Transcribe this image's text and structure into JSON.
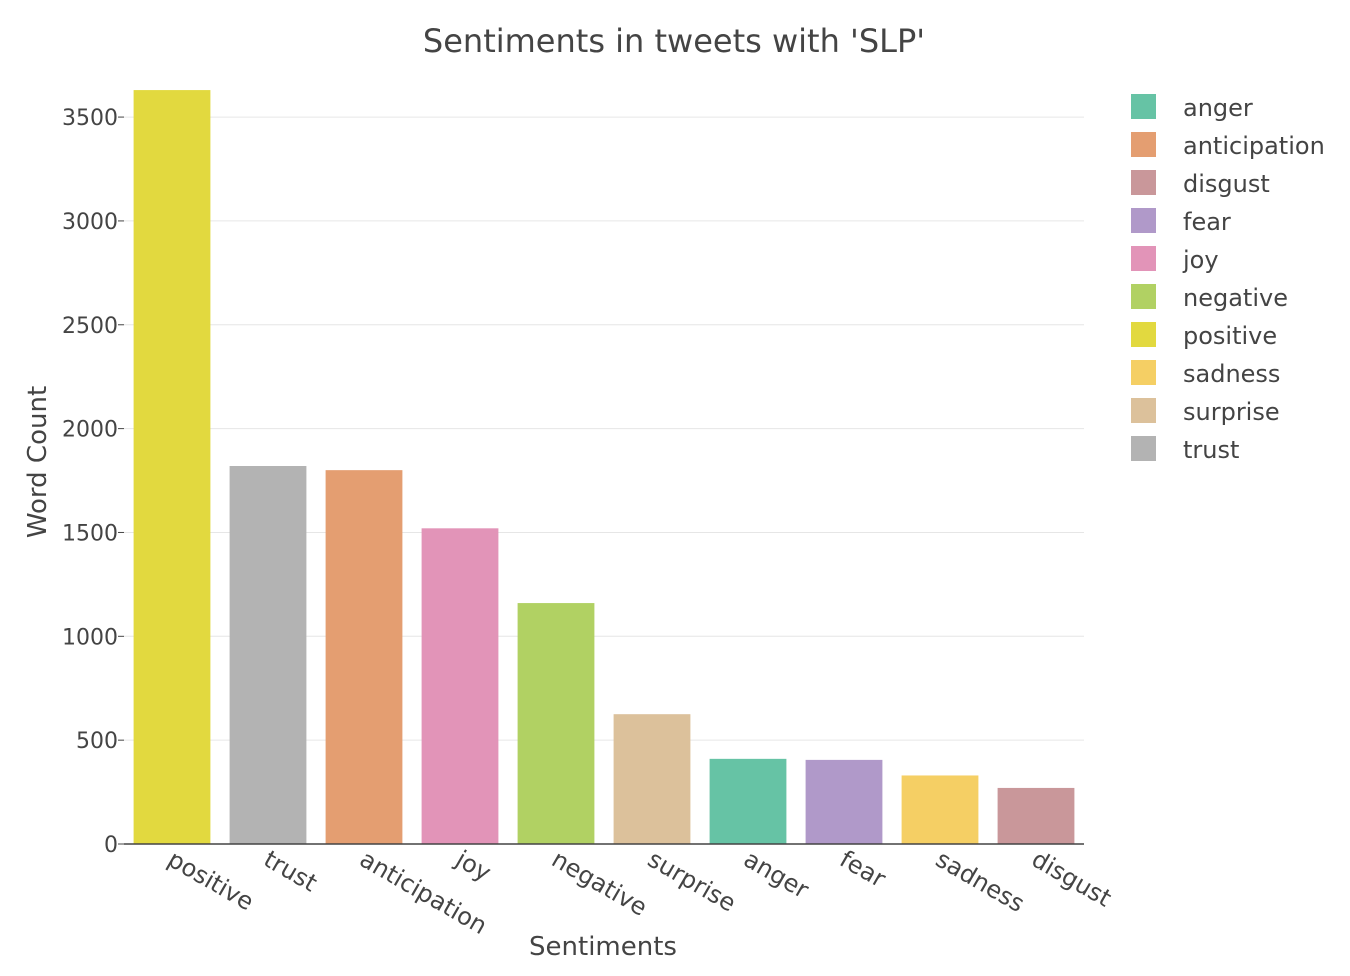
{
  "chart_data": {
    "type": "bar",
    "title": "Sentiments in tweets with 'SLP'",
    "xlabel": "Sentiments",
    "ylabel": "Word Count",
    "ylim": [
      0,
      3640
    ],
    "yticks": [
      0,
      500,
      1000,
      1500,
      2000,
      2500,
      3000,
      3500
    ],
    "grid": true,
    "legend_position": "right",
    "categories": [
      "positive",
      "trust",
      "anticipation",
      "joy",
      "negative",
      "surprise",
      "anger",
      "fear",
      "sadness",
      "disgust"
    ],
    "values": [
      3630,
      1820,
      1800,
      1520,
      1160,
      625,
      410,
      405,
      330,
      270
    ],
    "colors": [
      "#e2d93f",
      "#b3b3b3",
      "#e49e71",
      "#e294b8",
      "#b1d163",
      "#dcc19b",
      "#66c3a5",
      "#b099c9",
      "#f5cf64",
      "#c9979a"
    ],
    "legend": [
      {
        "name": "anger",
        "color": "#66c3a5"
      },
      {
        "name": "anticipation",
        "color": "#e49e71"
      },
      {
        "name": "disgust",
        "color": "#c9979a"
      },
      {
        "name": "fear",
        "color": "#b099c9"
      },
      {
        "name": "joy",
        "color": "#e294b8"
      },
      {
        "name": "negative",
        "color": "#b1d163"
      },
      {
        "name": "positive",
        "color": "#e2d93f"
      },
      {
        "name": "sadness",
        "color": "#f5cf64"
      },
      {
        "name": "surprise",
        "color": "#dcc19b"
      },
      {
        "name": "trust",
        "color": "#b3b3b3"
      }
    ]
  }
}
